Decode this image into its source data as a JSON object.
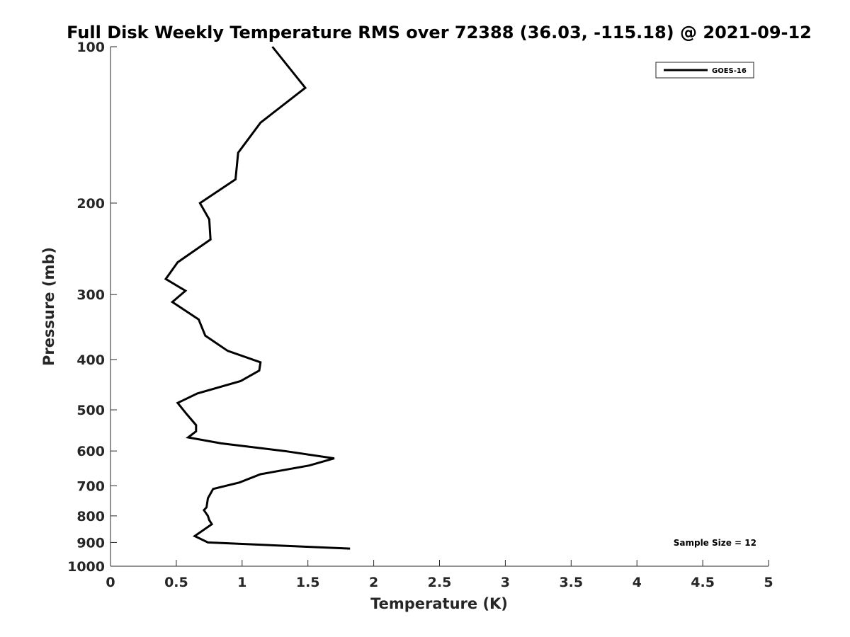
{
  "chart_data": {
    "type": "line",
    "title": "Full Disk Weekly Temperature RMS over 72388 (36.03, -115.18) @ 2021-09-12",
    "xlabel": "Temperature (K)",
    "ylabel": "Pressure (mb)",
    "xlim": [
      0,
      5
    ],
    "ylim": [
      1000,
      100
    ],
    "yscale": "log",
    "y_reversed": true,
    "xticks": [
      0,
      0.5,
      1,
      1.5,
      2,
      2.5,
      3,
      3.5,
      4,
      4.5,
      5
    ],
    "xtick_labels": [
      "0",
      "0.5",
      "1",
      "1.5",
      "2",
      "2.5",
      "3",
      "3.5",
      "4",
      "4.5",
      "5"
    ],
    "yticks": [
      100,
      200,
      300,
      400,
      500,
      600,
      700,
      800,
      900,
      1000
    ],
    "ytick_labels": [
      "100",
      "200",
      "300",
      "400",
      "500",
      "600",
      "700",
      "800",
      "900",
      "1000"
    ],
    "grid": false,
    "legend_position": "top-right",
    "series": [
      {
        "name": "GOES-16",
        "color": "#000000",
        "points": [
          {
            "x": 1.23,
            "p": 100
          },
          {
            "x": 1.48,
            "p": 120
          },
          {
            "x": 1.14,
            "p": 140
          },
          {
            "x": 0.97,
            "p": 160
          },
          {
            "x": 0.95,
            "p": 180
          },
          {
            "x": 0.68,
            "p": 200
          },
          {
            "x": 0.75,
            "p": 215
          },
          {
            "x": 0.76,
            "p": 235
          },
          {
            "x": 0.51,
            "p": 260
          },
          {
            "x": 0.42,
            "p": 280
          },
          {
            "x": 0.57,
            "p": 295
          },
          {
            "x": 0.47,
            "p": 310
          },
          {
            "x": 0.67,
            "p": 335
          },
          {
            "x": 0.72,
            "p": 360
          },
          {
            "x": 0.89,
            "p": 385
          },
          {
            "x": 1.14,
            "p": 405
          },
          {
            "x": 1.13,
            "p": 420
          },
          {
            "x": 0.99,
            "p": 440
          },
          {
            "x": 0.66,
            "p": 465
          },
          {
            "x": 0.51,
            "p": 485
          },
          {
            "x": 0.58,
            "p": 510
          },
          {
            "x": 0.65,
            "p": 535
          },
          {
            "x": 0.65,
            "p": 550
          },
          {
            "x": 0.59,
            "p": 565
          },
          {
            "x": 0.84,
            "p": 580
          },
          {
            "x": 1.32,
            "p": 600
          },
          {
            "x": 1.7,
            "p": 620
          },
          {
            "x": 1.51,
            "p": 640
          },
          {
            "x": 1.14,
            "p": 665
          },
          {
            "x": 0.98,
            "p": 690
          },
          {
            "x": 0.78,
            "p": 710
          },
          {
            "x": 0.74,
            "p": 740
          },
          {
            "x": 0.73,
            "p": 770
          },
          {
            "x": 0.71,
            "p": 780
          },
          {
            "x": 0.74,
            "p": 800
          },
          {
            "x": 0.75,
            "p": 815
          },
          {
            "x": 0.77,
            "p": 830
          },
          {
            "x": 0.64,
            "p": 875
          },
          {
            "x": 0.74,
            "p": 900
          },
          {
            "x": 1.82,
            "p": 925
          }
        ]
      }
    ],
    "annotations": [
      {
        "text": "Sample Size = 12",
        "position": "bottom-right"
      }
    ]
  }
}
